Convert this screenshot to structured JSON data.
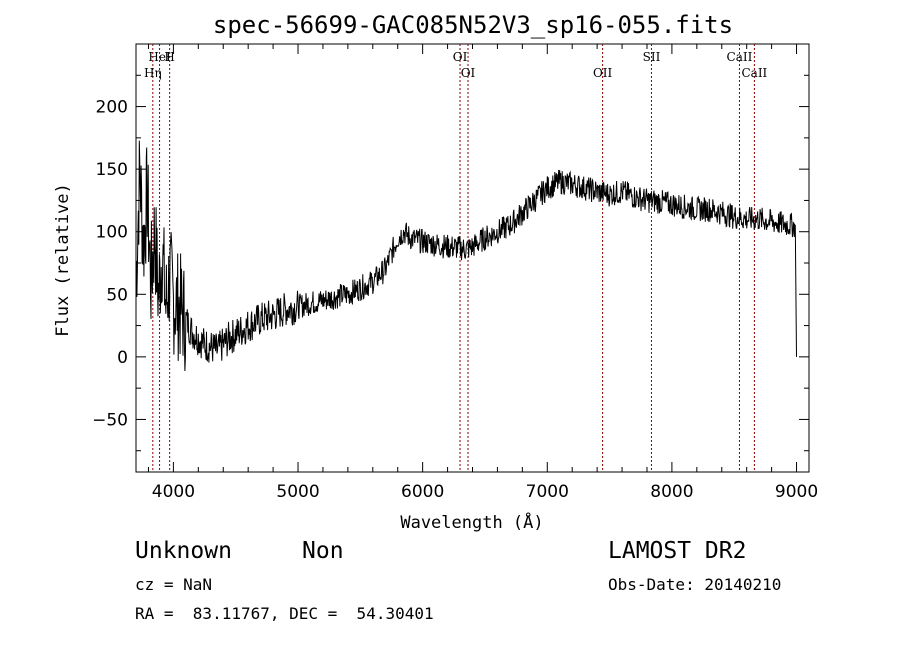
{
  "chart_data": {
    "type": "line",
    "title": "spec-56699-GAC085N52V3_sp16-055.fits",
    "xlabel": "Wavelength (Å)",
    "ylabel": "Flux (relative)",
    "xlim": [
      3700,
      9100
    ],
    "ylim": [
      -92,
      250
    ],
    "xticks": [
      4000,
      5000,
      6000,
      7000,
      8000,
      9000
    ],
    "yticks": [
      -50,
      0,
      50,
      100,
      150,
      200
    ],
    "grid": false,
    "line_color": "#000000",
    "marker_color": "#8b0000",
    "series": [
      {
        "x": [
          3700,
          3730,
          3760,
          3790,
          3820,
          3850,
          3880,
          3910,
          3940,
          3970,
          4000,
          4050,
          4100,
          4150,
          4200,
          4250,
          4300,
          4350,
          4400,
          4450,
          4500,
          4600,
          4700,
          4800,
          4900,
          5000,
          5100,
          5200,
          5300,
          5400,
          5500,
          5600,
          5700,
          5800,
          5850,
          5900,
          6000,
          6100,
          6200,
          6300,
          6350,
          6400,
          6500,
          6600,
          6700,
          6800,
          6900,
          7000,
          7100,
          7200,
          7300,
          7400,
          7500,
          7600,
          7700,
          7800,
          7900,
          8000,
          8100,
          8200,
          8300,
          8400,
          8500,
          8600,
          8700,
          8800,
          8900,
          8990,
          9000
        ],
        "y": [
          60,
          150,
          90,
          130,
          60,
          100,
          50,
          85,
          40,
          65,
          45,
          40,
          30,
          20,
          15,
          10,
          8,
          5,
          10,
          15,
          18,
          25,
          30,
          33,
          38,
          40,
          43,
          45,
          48,
          50,
          55,
          60,
          70,
          95,
          100,
          95,
          92,
          90,
          88,
          87,
          86,
          88,
          95,
          100,
          105,
          115,
          125,
          135,
          140,
          138,
          135,
          132,
          130,
          132,
          128,
          125,
          124,
          122,
          120,
          118,
          118,
          115,
          112,
          110,
          110,
          108,
          106,
          105,
          0
        ]
      }
    ],
    "lines": [
      {
        "label": "HeI",
        "x": 3889
      },
      {
        "label": "Hη",
        "x": 3835
      },
      {
        "label": "H",
        "x": 3970
      },
      {
        "label": "OI",
        "x": 6364
      },
      {
        "label": "OI",
        "x": 6300
      },
      {
        "label": "OII",
        "x": 7444
      },
      {
        "label": "SII",
        "x": 7836
      },
      {
        "label": "CaII",
        "x": 8662
      },
      {
        "label": "CaII",
        "x": 8542
      }
    ]
  },
  "info": {
    "class": "Unknown",
    "subclass": "Non",
    "cz": "cz = NaN",
    "radec": "RA =  83.11767, DEC =  54.30401",
    "survey": "LAMOST DR2",
    "obsdate": "Obs-Date: 20140210"
  }
}
